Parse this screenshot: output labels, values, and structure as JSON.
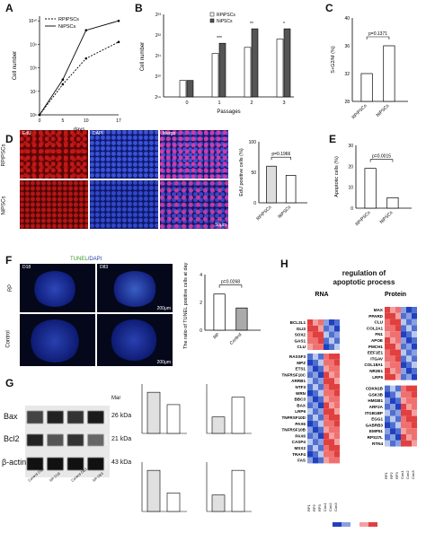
{
  "panels": {
    "A": "A",
    "B": "B",
    "C": "C",
    "D": "D",
    "E": "E",
    "F": "F",
    "G": "G",
    "H": "H"
  },
  "colors": {
    "red": "#d62d2d",
    "blue": "#2b3fa8",
    "dark_blue": "#0d1b6e",
    "gray": "#bdbdbd"
  },
  "panelA": {
    "ylabel": "Cell number",
    "xlabel": "days",
    "legend": [
      "RPiPSCs",
      "NiPSCs"
    ],
    "yticks": [
      "10⁶",
      "10⁷",
      "10⁸",
      "10⁹",
      "10¹⁰"
    ],
    "xticks": [
      "0",
      "5",
      "10",
      "17"
    ],
    "chart_data": {
      "type": "line",
      "x": [
        0,
        5,
        10,
        17
      ],
      "series": [
        {
          "name": "RPiPSCs",
          "values": [
            6,
            7.3,
            8.4,
            9.1
          ]
        },
        {
          "name": "NiPSCs",
          "values": [
            6,
            7.5,
            9.6,
            10
          ]
        }
      ],
      "ylim": [
        6,
        10.2
      ]
    }
  },
  "panelB": {
    "ylabel": "Cell number",
    "xlabel": "Passages",
    "legend": [
      "RPiPSCs",
      "NiPSCs"
    ],
    "yticks": [
      "2¹⁹",
      "2²⁰",
      "2²¹",
      "2²²",
      "2²³"
    ],
    "sig": [
      "***",
      "**",
      "*"
    ],
    "chart_data": {
      "type": "bar",
      "categories": [
        "0",
        "1",
        "2",
        "3"
      ],
      "series": [
        {
          "name": "RPiPSCs",
          "values": [
            19.8,
            21.1,
            21.4,
            21.8
          ]
        },
        {
          "name": "NiPSCs",
          "values": [
            19.8,
            21.6,
            22.3,
            22.3
          ]
        }
      ],
      "ylim": [
        19,
        23
      ]
    }
  },
  "panelC": {
    "ylabel": "S+G2/M (%)",
    "p": "p=0.1371",
    "chart_data": {
      "type": "bar",
      "categories": [
        "RPiPSCs",
        "NiPSCs"
      ],
      "values": [
        32,
        36
      ],
      "ylim": [
        28,
        40
      ]
    }
  },
  "panelD": {
    "cols": [
      "EdU",
      "DAPI",
      "Merge"
    ],
    "rows": [
      "RPiPSCs",
      "NiPSCs"
    ],
    "scale": "50μm",
    "ylabel": "EdU positive cells (%)",
    "p": "p=0.1966",
    "chart_data": {
      "type": "bar",
      "categories": [
        "RPiPSCs",
        "NiPSCs"
      ],
      "values": [
        60,
        45
      ],
      "ylim": [
        0,
        100
      ]
    }
  },
  "panelE": {
    "ylabel": "Apoptotic cells (%)",
    "p": "p=0.0015",
    "chart_data": {
      "type": "bar",
      "categories": [
        "RPiPSCs",
        "NiPSCs"
      ],
      "values": [
        19,
        5
      ],
      "ylim": [
        0,
        30
      ]
    }
  },
  "panelF": {
    "title_a": "TUNEL",
    "title_b": "/DAPI",
    "rows": [
      "RP",
      "Control"
    ],
    "days": [
      "D18",
      "D83"
    ],
    "scale": "200μm",
    "ylabel": "The ratio of TUNEL positive cells at day 83",
    "p": "p=0.0268",
    "chart_data": {
      "type": "bar",
      "categories": [
        "RP",
        "Control"
      ],
      "values": [
        2.6,
        1.6
      ],
      "ylim": [
        0,
        4
      ]
    }
  },
  "panelG": {
    "marker": "Mar",
    "bands": [
      "Bax",
      "Bcl2",
      "β-actin"
    ],
    "kda": [
      "26 kDa",
      "21 kDa",
      "43 kDa"
    ],
    "lanes": [
      "Control D18",
      "RP D18",
      "Control D83",
      "RP D83"
    ]
  },
  "panelH": {
    "title": "regulation of\napoptotic process",
    "rna_title": "RNA",
    "protein_title": "Protein",
    "rna_up": [
      "BCL2L1",
      "GLI3",
      "SOX2",
      "GAS1",
      "CLU"
    ],
    "rna_down": [
      "RASSF3",
      "MPZ",
      "ETS1",
      "TNFRSF10C",
      "ARRB1",
      "NTF3",
      "WRN",
      "BBC3",
      "BAX",
      "LRP6",
      "TNFRSF10D",
      "PAX6",
      "TNFRSF10B",
      "PAX6",
      "CASP4",
      "MSX2",
      "TRAF4",
      "FAS"
    ],
    "prot_up": [
      "MAX",
      "PPARD",
      "CLU",
      "COL2A1",
      "FN1",
      "APOE",
      "PMCH1",
      "EEF1E1",
      "ITGAV",
      "COL18A1",
      "NR2E1",
      "LRP5"
    ],
    "prot_down": [
      "CDKN1B",
      "GSK3B",
      "HMGB1",
      "ARF2A",
      "ITGB1BP",
      "EGG1",
      "GABRB3",
      "EMP51",
      "RPS27L",
      "RTN4"
    ],
    "samples": [
      "RP1",
      "RP2",
      "RP3",
      "Con1",
      "Con2",
      "Con3"
    ]
  }
}
